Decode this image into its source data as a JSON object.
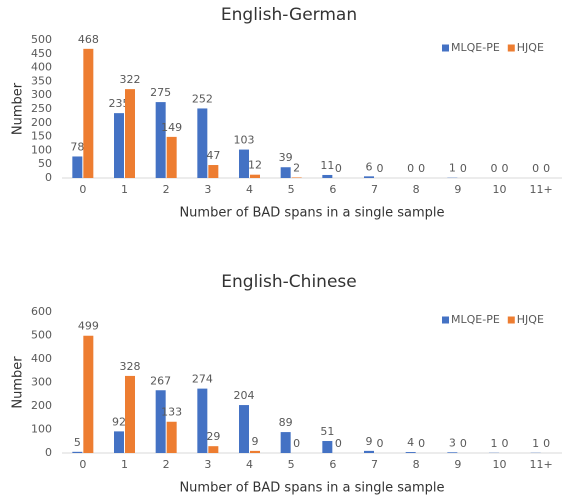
{
  "chart_data": [
    {
      "type": "bar",
      "title": "English-German",
      "x_label": "Number of BAD spans in a single sample",
      "y_label": "Number",
      "categories": [
        "0",
        "1",
        "2",
        "3",
        "4",
        "5",
        "6",
        "7",
        "8",
        "9",
        "10",
        "11+"
      ],
      "series": [
        {
          "name": "MLQE-PE",
          "color": "#4472c4",
          "values": [
            78,
            235,
            275,
            252,
            103,
            39,
            11,
            6,
            0,
            1,
            0,
            0
          ]
        },
        {
          "name": "HJQE",
          "color": "#ed7d31",
          "values": [
            468,
            322,
            149,
            47,
            12,
            2,
            0,
            0,
            0,
            0,
            0,
            0
          ]
        }
      ],
      "ylim": [
        0,
        500
      ],
      "yticks": [
        0,
        50,
        100,
        150,
        200,
        250,
        300,
        350,
        400,
        450,
        500
      ],
      "grid": false,
      "legend": "upper right"
    },
    {
      "type": "bar",
      "title": "English-Chinese",
      "x_label": "Number of BAD spans in a single sample",
      "y_label": "Number",
      "categories": [
        "0",
        "1",
        "2",
        "3",
        "4",
        "5",
        "6",
        "7",
        "8",
        "9",
        "10",
        "11+"
      ],
      "series": [
        {
          "name": "MLQE-PE",
          "color": "#4472c4",
          "values": [
            5,
            92,
            267,
            274,
            204,
            89,
            51,
            9,
            4,
            3,
            1,
            1
          ]
        },
        {
          "name": "HJQE",
          "color": "#ed7d31",
          "values": [
            499,
            328,
            133,
            29,
            9,
            0,
            0,
            0,
            0,
            0,
            0,
            0
          ]
        }
      ],
      "ylim": [
        0,
        600
      ],
      "yticks": [
        0,
        100,
        200,
        300,
        400,
        500,
        600
      ],
      "grid": false,
      "legend": "upper right"
    }
  ]
}
